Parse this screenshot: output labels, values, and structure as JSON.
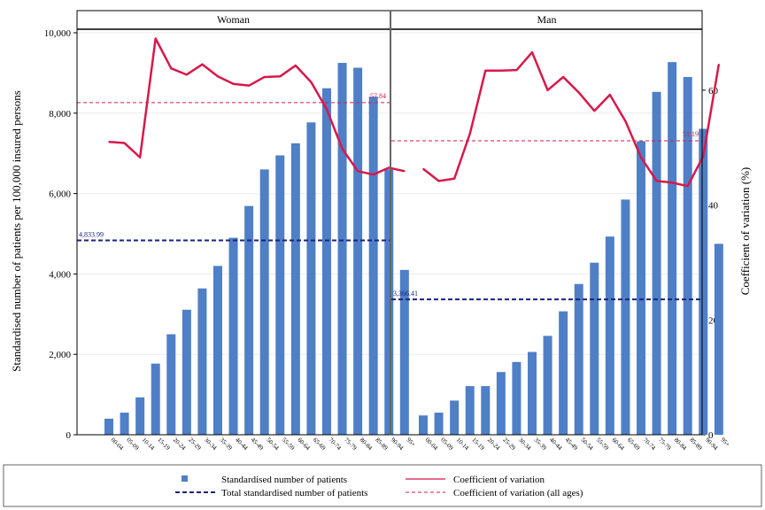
{
  "chart_data": {
    "type": "bar",
    "y_label": "Standardised number of patients per 100,000 insured persons",
    "y2_label": "Coefficient of variation (%)",
    "ylim": [
      0,
      10000
    ],
    "y_ticks": [
      "0",
      "2,000",
      "4,000",
      "6,000",
      "8,000",
      "10,000"
    ],
    "y2lim": [
      0,
      70
    ],
    "y2_ticks": [
      "0",
      "20",
      "40",
      "60"
    ],
    "categories": [
      "00-04",
      "05-09",
      "10-14",
      "15-19",
      "20-24",
      "25-29",
      "30-34",
      "35-39",
      "40-44",
      "45-49",
      "50-54",
      "55-59",
      "60-64",
      "65-69",
      "70-74",
      "75-79",
      "80-84",
      "85-89",
      "90-94",
      "95+"
    ],
    "colors": {
      "bar": "#4f7fc7",
      "cv": "#d7194a",
      "total": "#1a237e"
    },
    "panels": [
      {
        "title": "Woman",
        "bars": [
          400,
          550,
          930,
          1770,
          2500,
          3110,
          3640,
          4200,
          4900,
          5690,
          6600,
          6950,
          7250,
          7770,
          8620,
          9250,
          9130,
          8410,
          6600,
          4100
        ],
        "cv": [
          51,
          50.8,
          48.3,
          69,
          63.8,
          62.7,
          64.5,
          62.4,
          61.1,
          60.8,
          62.3,
          62.4,
          64.3,
          61.4,
          56.7,
          49.8,
          45.9,
          45.3,
          46.5,
          45.9
        ],
        "cv_all": 57.84,
        "cv_all_label": "57.84",
        "total": 4833.99,
        "total_label": "4,833.99"
      },
      {
        "title": "Man",
        "bars": [
          480,
          550,
          850,
          1210,
          1210,
          1560,
          1810,
          2060,
          2460,
          3070,
          3750,
          4280,
          4930,
          5850,
          7300,
          8530,
          9270,
          8900,
          7610,
          4750
        ],
        "cv": [
          46.3,
          44.2,
          44.6,
          52.4,
          63.4,
          63.4,
          63.5,
          66.6,
          60,
          62.3,
          59.6,
          56.4,
          59.2,
          54.6,
          48.3,
          44.2,
          43.9,
          43.3,
          48.5,
          64.5
        ],
        "cv_all": 51.19,
        "cv_all_label": "51.19",
        "total": 3366.41,
        "total_label": "3,366.41"
      }
    ],
    "legend": [
      {
        "kind": "bar",
        "label": "Standardised number of patients"
      },
      {
        "kind": "cv",
        "label": "Coefficient of variation"
      },
      {
        "kind": "total",
        "label": "Total standardised number of patients"
      },
      {
        "kind": "cv_all",
        "label": "Coefficient of variation (all ages)"
      }
    ],
    "legend_position": "bottom"
  }
}
